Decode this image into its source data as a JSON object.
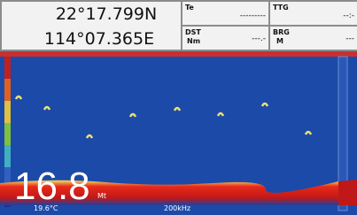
{
  "position": {
    "lat": "22°17.799N",
    "lon": "114°07.365E"
  },
  "fields": [
    {
      "label": "Te",
      "value": "---------"
    },
    {
      "label": "TTG",
      "value": "--:-"
    },
    {
      "label": "DST",
      "unit": "Nm",
      "value": "---.-"
    },
    {
      "label": "BRG",
      "unit": "M",
      "value": "---"
    }
  ],
  "sonar": {
    "depth": 16.8,
    "depth_unit": "Mt",
    "temperature": "19.6°C",
    "frequency": "200kHz"
  }
}
